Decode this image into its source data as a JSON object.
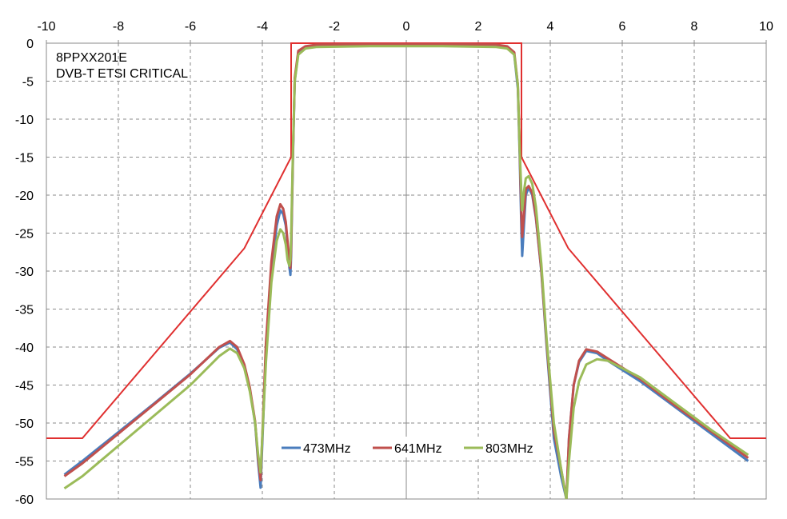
{
  "chart_data": {
    "type": "line",
    "title": "",
    "xlabel": "",
    "ylabel": "",
    "xlim": [
      -10,
      10
    ],
    "ylim": [
      -60,
      0
    ],
    "xticks": [
      "-10",
      "-8",
      "-6",
      "-4",
      "-2",
      "0",
      "2",
      "4",
      "6",
      "8",
      "10"
    ],
    "yticks": [
      "0",
      "-5",
      "-10",
      "-15",
      "-20",
      "-25",
      "-30",
      "-35",
      "-40",
      "-45",
      "-50",
      "-55",
      "-60"
    ],
    "x_axis_position": "top",
    "grid": true,
    "legend_position": "bottom-center",
    "annotations": [
      "8PPXX201E",
      "DVB-T ETSI CRITICAL"
    ],
    "mask": {
      "color": "#e03030",
      "x": [
        -10,
        -9.0,
        -4.5,
        -3.2,
        -3.2,
        3.2,
        3.2,
        4.5,
        9.0,
        10
      ],
      "y": [
        -52,
        -52,
        -27,
        -15,
        0,
        0,
        -15,
        -27,
        -52,
        -52
      ]
    },
    "series": [
      {
        "name": "473MHz",
        "color": "#4a7dbd",
        "x": [
          -9.5,
          -9,
          -8,
          -7,
          -6,
          -5.2,
          -4.9,
          -4.7,
          -4.5,
          -4.35,
          -4.2,
          -4.12,
          -4.05,
          -3.9,
          -3.75,
          -3.6,
          -3.5,
          -3.42,
          -3.35,
          -3.3,
          -3.25,
          -3.22,
          -3.2,
          -3.15,
          -3.1,
          -3.0,
          -2.8,
          -2.5,
          -1,
          0,
          1,
          2.5,
          2.8,
          3.0,
          3.1,
          3.15,
          3.2,
          3.22,
          3.27,
          3.32,
          3.4,
          3.5,
          3.6,
          3.75,
          3.9,
          4.1,
          4.3,
          4.45,
          4.52,
          4.65,
          4.8,
          5.0,
          5.3,
          5.6,
          6.5,
          7.5,
          8.5,
          9.5
        ],
        "y": [
          -56.8,
          -55,
          -51.2,
          -47.4,
          -43.5,
          -40.1,
          -39.4,
          -40.3,
          -42.5,
          -45.5,
          -50,
          -55,
          -58.5,
          -40.5,
          -30,
          -24,
          -22,
          -22.5,
          -24,
          -26.5,
          -29.5,
          -30.5,
          -28,
          -15,
          -5,
          -1.2,
          -0.5,
          -0.3,
          -0.2,
          -0.2,
          -0.2,
          -0.3,
          -0.5,
          -1.5,
          -6,
          -15,
          -25,
          -28,
          -24,
          -20,
          -19,
          -20,
          -23,
          -30,
          -40,
          -52,
          -57,
          -60,
          -52,
          -45,
          -42,
          -40.5,
          -40.8,
          -41.8,
          -44.5,
          -48,
          -51.5,
          -55
        ]
      },
      {
        "name": "641MHz",
        "color": "#c0504d",
        "x": [
          -9.5,
          -9,
          -8,
          -7,
          -6,
          -5.2,
          -4.9,
          -4.7,
          -4.5,
          -4.35,
          -4.2,
          -4.12,
          -4.05,
          -3.9,
          -3.75,
          -3.6,
          -3.5,
          -3.42,
          -3.35,
          -3.3,
          -3.25,
          -3.22,
          -3.2,
          -3.15,
          -3.1,
          -3.0,
          -2.8,
          -2.5,
          -1,
          0,
          1,
          2.5,
          2.8,
          3.0,
          3.1,
          3.15,
          3.2,
          3.22,
          3.27,
          3.32,
          3.4,
          3.5,
          3.6,
          3.75,
          3.9,
          4.1,
          4.3,
          4.45,
          4.52,
          4.65,
          4.8,
          5.0,
          5.3,
          5.6,
          6.5,
          7.5,
          8.5,
          9.5
        ],
        "y": [
          -57,
          -55.3,
          -51.4,
          -47.5,
          -43.6,
          -40,
          -39.2,
          -40,
          -42.3,
          -45.3,
          -49.8,
          -54.5,
          -57.5,
          -39.5,
          -28.8,
          -22.8,
          -21.2,
          -21.8,
          -23.5,
          -26,
          -28.7,
          -29.6,
          -27,
          -14.5,
          -4.6,
          -1,
          -0.4,
          -0.2,
          -0.1,
          -0.1,
          -0.1,
          -0.2,
          -0.4,
          -1.2,
          -5.5,
          -14,
          -23,
          -25.5,
          -22.5,
          -19.2,
          -18.8,
          -19.7,
          -22.8,
          -29.8,
          -39.5,
          -51,
          -56,
          -60,
          -52,
          -45,
          -41.8,
          -40.3,
          -40.6,
          -41.5,
          -44.2,
          -47.8,
          -51.2,
          -54.6
        ]
      },
      {
        "name": "803MHz",
        "color": "#9bbb59",
        "x": [
          -9.5,
          -9,
          -8,
          -7,
          -6,
          -5.2,
          -4.9,
          -4.7,
          -4.5,
          -4.35,
          -4.2,
          -4.12,
          -4.05,
          -3.9,
          -3.75,
          -3.6,
          -3.5,
          -3.42,
          -3.35,
          -3.3,
          -3.25,
          -3.22,
          -3.2,
          -3.15,
          -3.1,
          -3.0,
          -2.8,
          -2.5,
          -1,
          0,
          1,
          2.5,
          2.8,
          3.0,
          3.1,
          3.15,
          3.2,
          3.22,
          3.27,
          3.32,
          3.4,
          3.5,
          3.6,
          3.75,
          3.9,
          4.1,
          4.3,
          4.45,
          4.52,
          4.65,
          4.8,
          5.0,
          5.3,
          5.6,
          6.5,
          7.5,
          8.5,
          9.5
        ],
        "y": [
          -58.6,
          -57,
          -53,
          -49,
          -45,
          -41.2,
          -40.2,
          -40.8,
          -42.8,
          -45.8,
          -50,
          -54,
          -56.5,
          -42,
          -31.5,
          -26,
          -24.5,
          -25,
          -26.5,
          -28.5,
          -29.3,
          -28.5,
          -25.5,
          -14,
          -5,
          -1.5,
          -0.7,
          -0.5,
          -0.4,
          -0.4,
          -0.4,
          -0.5,
          -0.7,
          -1.5,
          -5.5,
          -14,
          -20,
          -22,
          -19.5,
          -17.8,
          -17.5,
          -18.5,
          -21.5,
          -29,
          -39,
          -50,
          -56,
          -60,
          -55,
          -48,
          -44.5,
          -42.3,
          -41.6,
          -41.8,
          -44,
          -47.5,
          -51,
          -54.2
        ]
      }
    ]
  }
}
